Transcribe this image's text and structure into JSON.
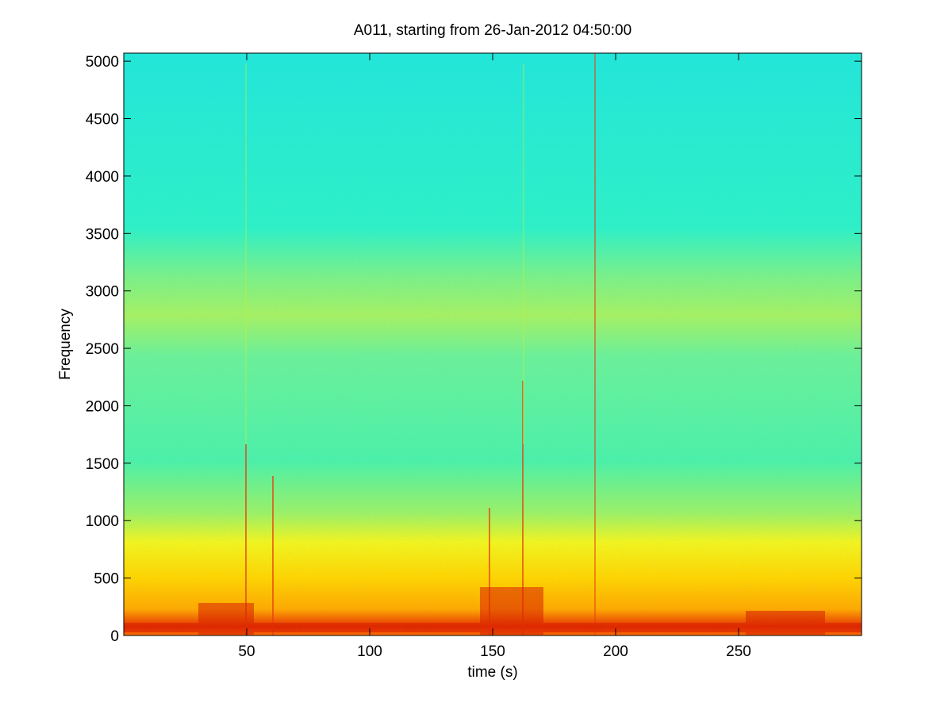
{
  "chart_data": {
    "type": "spectrogram",
    "title": "A011, starting from 26-Jan-2012 04:50:00",
    "x_label": "time (s)",
    "y_label": "Frequency",
    "xlim": [
      0,
      300
    ],
    "xticks": [
      50,
      100,
      150,
      200,
      250
    ],
    "ylim": [
      0,
      5070
    ],
    "yticks": [
      0,
      500,
      1000,
      1500,
      2000,
      2500,
      3000,
      3500,
      4000,
      4500,
      5000
    ]
  }
}
